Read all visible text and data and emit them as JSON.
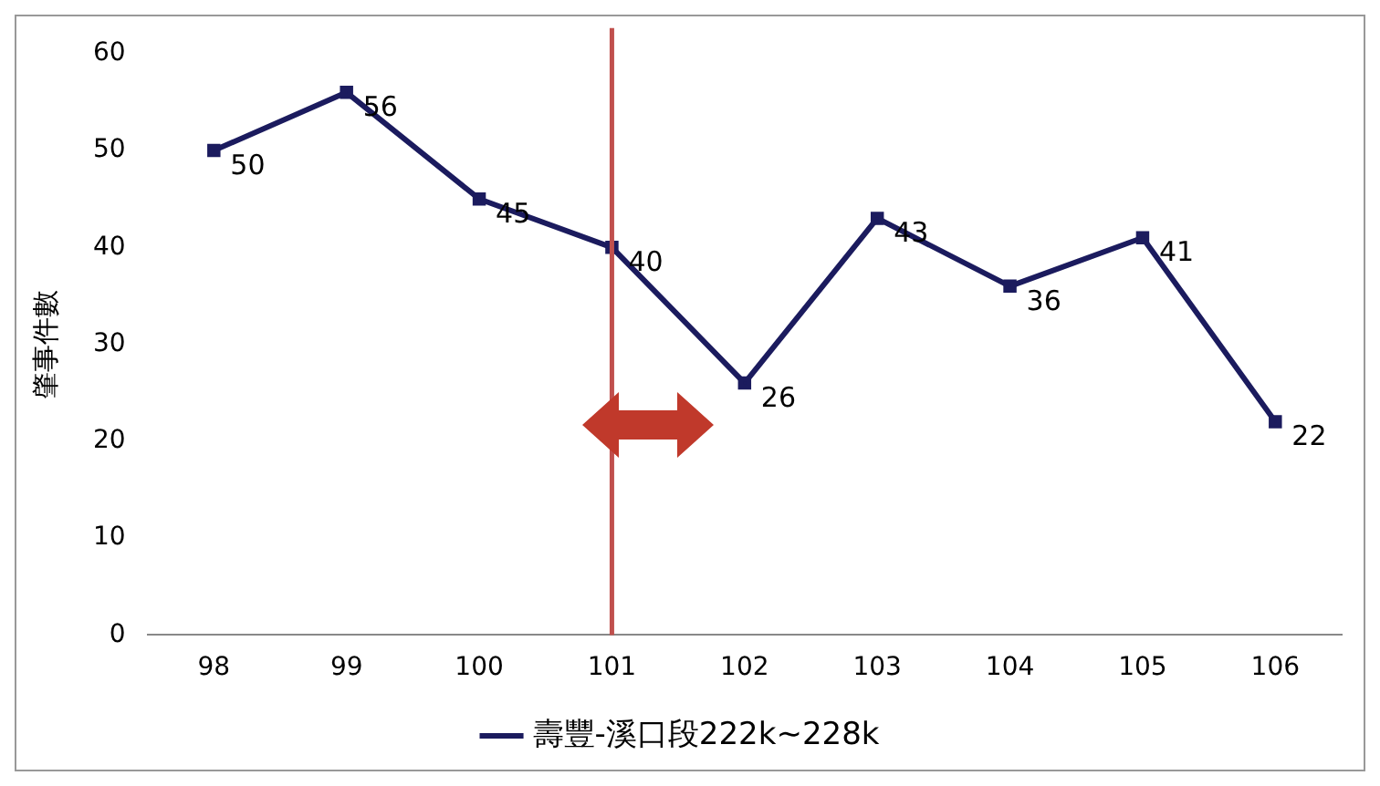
{
  "chart_data": {
    "type": "line",
    "ylabel": "肇事件數",
    "categories": [
      "98",
      "99",
      "100",
      "101",
      "102",
      "103",
      "104",
      "105",
      "106"
    ],
    "series": [
      {
        "name": "壽豐-溪口段222k~228k",
        "color": "#1b1b5e",
        "values": [
          50,
          56,
          45,
          40,
          26,
          43,
          36,
          41,
          22
        ]
      }
    ],
    "ylim": [
      0,
      60
    ],
    "yticks": [
      0,
      10,
      20,
      30,
      40,
      50,
      60
    ],
    "ref_lines": [
      {
        "axis": "x",
        "value": "101",
        "color": "#c0504d"
      }
    ],
    "data_labels": true,
    "grid": false,
    "legend": "bottom",
    "marker": "square",
    "line_style": "solid"
  }
}
